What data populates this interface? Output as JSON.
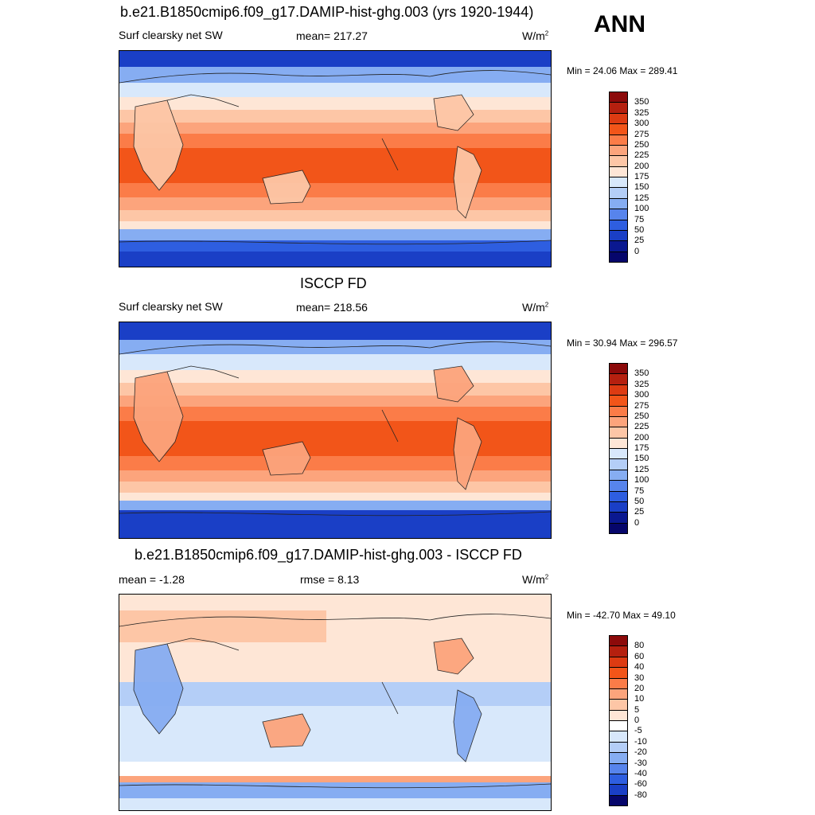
{
  "season": "ANN",
  "panels": [
    {
      "title": "b.e21.B1850cmip6.f09_g17.DAMIP-hist-ghg.003 (yrs 1920-1944)",
      "left": "Surf clearsky net SW",
      "center": "mean= 217.27",
      "units": "W/m",
      "units_sup": "2",
      "minmax": "Min =  24.06 Max = 289.41",
      "levels": [
        "350",
        "325",
        "300",
        "275",
        "250",
        "225",
        "200",
        "175",
        "150",
        "125",
        "100",
        "75",
        "50",
        "25",
        "0"
      ],
      "colors": [
        "#8c0a0a",
        "#b5200f",
        "#dd3b12",
        "#f25519",
        "#fb7c48",
        "#fca47c",
        "#fdc6a6",
        "#fee6d6",
        "#d8e8fb",
        "#b4cef7",
        "#86adf2",
        "#5784ec",
        "#2e5ee0",
        "#1a3fc6",
        "#0a1890",
        "#06066b"
      ]
    },
    {
      "title": "ISCCP FD",
      "left": "Surf clearsky net SW",
      "center": "mean= 218.56",
      "units": "W/m",
      "units_sup": "2",
      "minmax": "Min =  30.94 Max = 296.57",
      "levels": [
        "350",
        "325",
        "300",
        "275",
        "250",
        "225",
        "200",
        "175",
        "150",
        "125",
        "100",
        "75",
        "50",
        "25",
        "0"
      ],
      "colors": [
        "#8c0a0a",
        "#b5200f",
        "#dd3b12",
        "#f25519",
        "#fb7c48",
        "#fca47c",
        "#fdc6a6",
        "#fee6d6",
        "#d8e8fb",
        "#b4cef7",
        "#86adf2",
        "#5784ec",
        "#2e5ee0",
        "#1a3fc6",
        "#0a1890",
        "#06066b"
      ]
    },
    {
      "title": "b.e21.B1850cmip6.f09_g17.DAMIP-hist-ghg.003 - ISCCP FD",
      "left": "mean =  -1.28",
      "center": "rmse =   8.13",
      "units": "W/m",
      "units_sup": "2",
      "minmax": "Min = -42.70 Max =  49.10",
      "levels": [
        "80",
        "60",
        "40",
        "30",
        "20",
        "10",
        "5",
        "0",
        "-5",
        "-10",
        "-20",
        "-30",
        "-40",
        "-60",
        "-80"
      ],
      "colors": [
        "#8c0a0a",
        "#b5200f",
        "#dd3b12",
        "#f25519",
        "#fb7c48",
        "#fca47c",
        "#fdc6a6",
        "#fee6d6",
        "#ffffff",
        "#d8e8fb",
        "#b4cef7",
        "#86adf2",
        "#5784ec",
        "#2e5ee0",
        "#1a3fc6",
        "#06066b"
      ]
    }
  ]
}
